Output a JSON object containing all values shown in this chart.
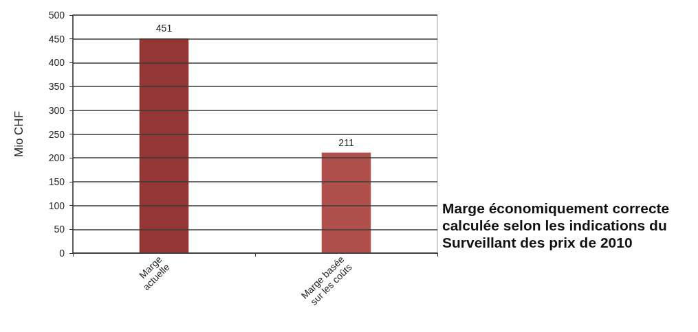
{
  "chart_data": {
    "type": "bar",
    "categories": [
      "Marge actuelle",
      "Marge basée sur les coûts"
    ],
    "values": [
      451,
      211
    ],
    "colors": [
      "#943634",
      "#b0504d"
    ],
    "ylabel": "Mio CHF",
    "ylim": [
      0,
      500
    ],
    "yticks": [
      0,
      50,
      100,
      150,
      200,
      250,
      300,
      350,
      400,
      450,
      500
    ],
    "grid": "y",
    "data_labels": true,
    "annotations": [
      "Marge économiquement correcte calculée selon les indications du Surveillant des prix de 2010"
    ]
  }
}
